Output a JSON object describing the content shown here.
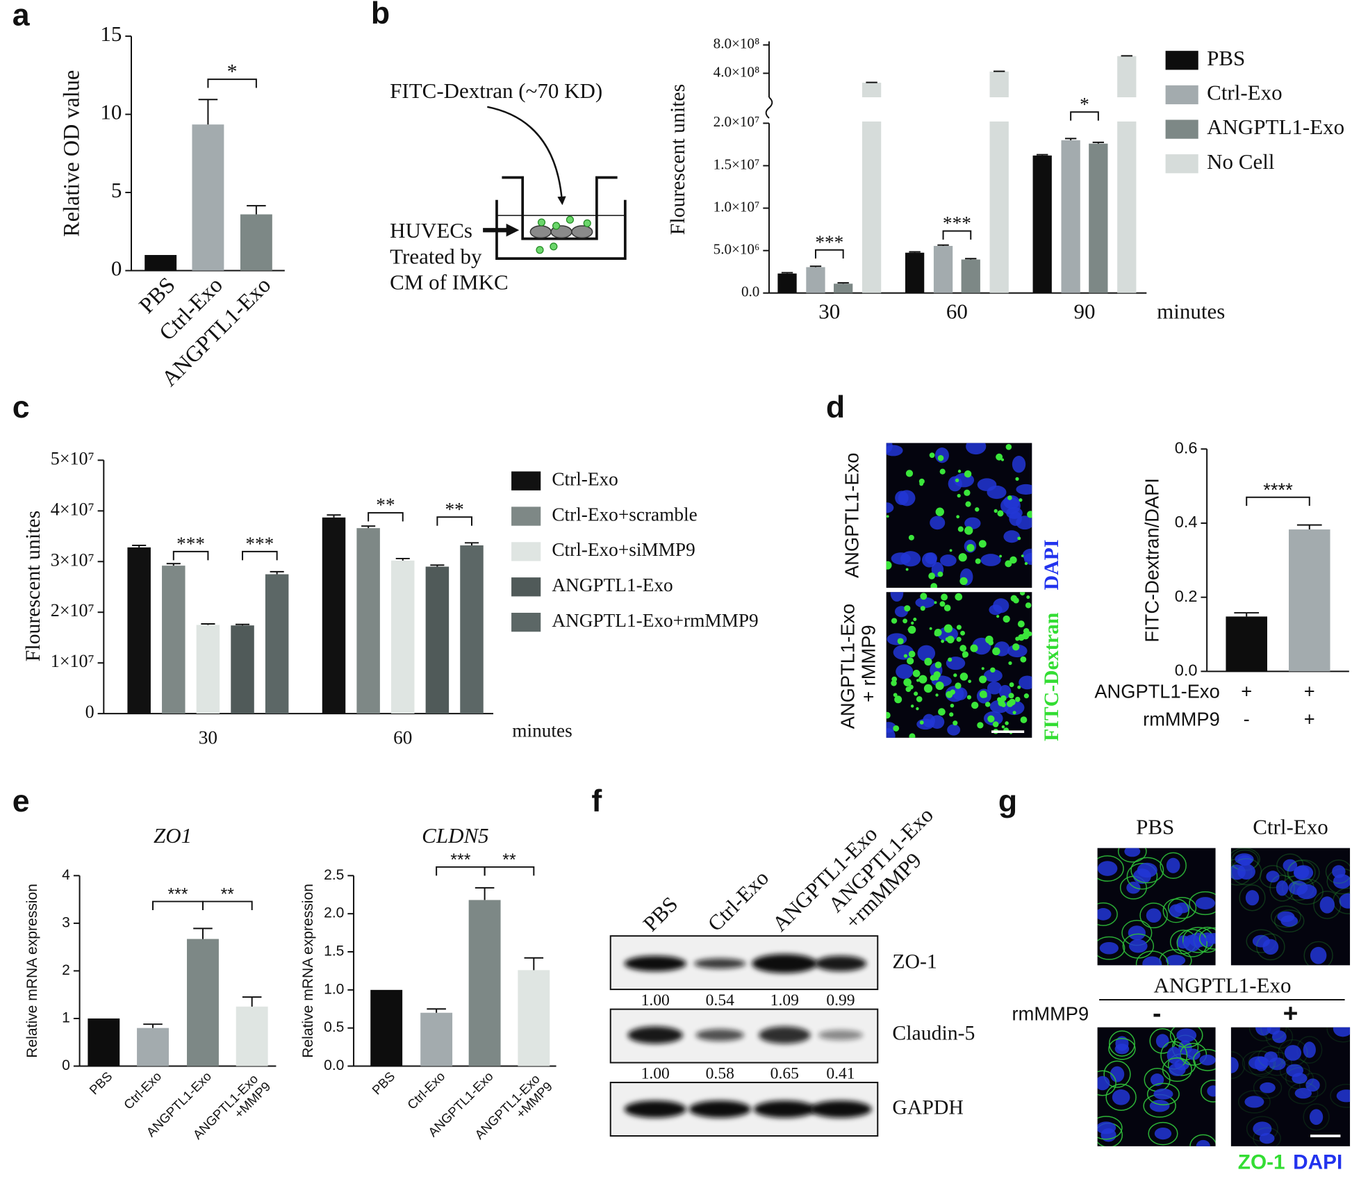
{
  "panels": [
    "a",
    "b",
    "c",
    "d",
    "e",
    "f",
    "g"
  ],
  "chart_data": [
    {
      "type": "bar",
      "ylabel": "Relative OD value",
      "categories": [
        "PBS",
        "Ctrl-Exo",
        "ANGPTL1-Exo"
      ],
      "values": [
        1,
        9.35,
        3.6
      ],
      "errors": [
        null,
        1.6,
        0.55
      ],
      "colors": [
        "#0d0d0d",
        "#a3abae",
        "#7d8886"
      ],
      "ylim": [
        0,
        15
      ],
      "yticks": [
        0,
        5,
        10,
        15
      ],
      "annotations": [
        "*"
      ]
    },
    {
      "type": "grouped_bar",
      "ylabel": "Flourescent unites",
      "xlabel": "minutes",
      "categories": [
        "30",
        "60",
        "90"
      ],
      "series": [
        {
          "name": "PBS",
          "color": "#0d0d0d",
          "values": [
            2300000,
            4750000,
            16200000
          ],
          "errors": [
            100000,
            100000,
            100000
          ]
        },
        {
          "name": "Ctrl-Exo",
          "color": "#a3abae",
          "values": [
            3050000,
            5550000,
            18000000
          ],
          "errors": [
            100000,
            100000,
            200000
          ]
        },
        {
          "name": "ANGPTL1-Exo",
          "color": "#7d8886",
          "values": [
            1100000,
            3950000,
            17600000
          ],
          "errors": [
            100000,
            100000,
            150000
          ]
        },
        {
          "name": "No Cell",
          "color": "#d6dcda",
          "values": [
            267000000,
            424000000,
            642000000
          ],
          "errors": [
            4000000,
            4000000,
            4000000
          ]
        }
      ],
      "ylim": [
        0,
        20000000
      ],
      "yticks": [
        {
          "value": 0,
          "label": "0.0"
        },
        {
          "value": 5000000,
          "label": "5.0×10⁶"
        },
        {
          "value": 10000000,
          "label": "1.0×10⁷"
        },
        {
          "value": 15000000,
          "label": "1.5×10⁷"
        },
        {
          "value": 20000000,
          "label": "2.0×10⁷"
        }
      ],
      "ylim_upper": [
        60000000,
        850000000
      ],
      "yticks_upper": [
        {
          "value": 400000000,
          "label": "4.0×10⁸"
        },
        {
          "value": 800000000,
          "label": "8.0×10⁸"
        }
      ],
      "annotations": [
        "***",
        "***",
        "*"
      ],
      "legend": "right"
    },
    {
      "type": "grouped_bar",
      "ylabel": "Flourescent unites",
      "xlabel": "minutes",
      "categories": [
        "30",
        "60"
      ],
      "series": [
        {
          "name": "Ctrl-Exo",
          "color": "#111111",
          "values": [
            32800000,
            38700000
          ],
          "errors": [
            400000,
            500000
          ]
        },
        {
          "name": "Ctrl-Exo+scramble",
          "color": "#7e8886",
          "values": [
            29200000,
            36600000
          ],
          "errors": [
            400000,
            400000
          ]
        },
        {
          "name": "Ctrl-Exo+siMMP9",
          "color": "#dfe5e2",
          "values": [
            17500000,
            30200000
          ],
          "errors": [
            200000,
            400000
          ]
        },
        {
          "name": "ANGPTL1-Exo",
          "color": "#505a59",
          "values": [
            17400000,
            29000000
          ],
          "errors": [
            200000,
            300000
          ]
        },
        {
          "name": "ANGPTL1-Exo+rmMMP9",
          "color": "#5c6766",
          "values": [
            27500000,
            33200000
          ],
          "errors": [
            500000,
            500000
          ]
        }
      ],
      "ylim": [
        0,
        50000000
      ],
      "yticks": [
        0,
        {
          "value": 10000000,
          "label": "1×10⁷"
        },
        {
          "value": 20000000,
          "label": "2×10⁷"
        },
        {
          "value": 30000000,
          "label": "3×10⁷"
        },
        {
          "value": 40000000,
          "label": "4×10⁷"
        },
        {
          "value": 50000000,
          "label": "5×10⁷"
        }
      ],
      "annotations": [
        "***",
        "***",
        "**",
        "**"
      ],
      "legend": "right"
    },
    {
      "type": "bar",
      "ylabel": "FITC-Dextran/DAPI",
      "values": [
        0.148,
        0.383
      ],
      "errors": [
        0.01,
        0.012
      ],
      "colors": [
        "#0d0d0d",
        "#a3abae"
      ],
      "ylim": [
        0,
        0.6
      ],
      "yticks": [
        {
          "value": 0,
          "label": "0.0"
        },
        0.2,
        0.4,
        0.6
      ],
      "annotations": [
        "****"
      ],
      "conditions": [
        {
          "name": "ANGPTL1-Exo",
          "levels": [
            "+",
            "+"
          ]
        },
        {
          "name": "rmMMP9",
          "levels": [
            "-",
            "+"
          ]
        }
      ]
    },
    {
      "type": "bar",
      "title": "ZO1",
      "ylabel": "Relative mRNA expression",
      "categories": [
        "PBS",
        "Ctrl-Exo",
        "ANGPTL1-Exo",
        "ANGPTL1-Exo +MMP9"
      ],
      "values": [
        1,
        0.8,
        2.67,
        1.25
      ],
      "errors": [
        null,
        0.08,
        0.22,
        0.2
      ],
      "colors": [
        "#0d0d0d",
        "#a3abae",
        "#7d8886",
        "#dfe5e2"
      ],
      "ylim": [
        0,
        4
      ],
      "yticks": [
        0,
        1,
        2,
        3,
        4
      ],
      "annotations": [
        "***",
        "**"
      ]
    },
    {
      "type": "bar",
      "title": "CLDN5",
      "ylabel": "Relative mRNA expression",
      "categories": [
        "PBS",
        "Ctrl-Exo",
        "ANGPTL1-Exo",
        "ANGPTL1-Exo +MMP9"
      ],
      "values": [
        1,
        0.7,
        2.18,
        1.26
      ],
      "errors": [
        null,
        0.05,
        0.16,
        0.16
      ],
      "colors": [
        "#0d0d0d",
        "#a3abae",
        "#7d8886",
        "#dfe5e2"
      ],
      "ylim": [
        0,
        2.5
      ],
      "yticks": [
        {
          "value": 0,
          "label": "0.0"
        },
        0.5,
        {
          "value": 1,
          "label": "1.0"
        },
        1.5,
        {
          "value": 2,
          "label": "2.0"
        },
        2.5
      ],
      "annotations": [
        "***",
        "**"
      ]
    }
  ],
  "schematic": {
    "reagent": "FITC-Dextran (~70 KD)",
    "cells": [
      "HUVECs",
      "Treated by",
      "CM of IMKC"
    ]
  },
  "micrographs_d": {
    "rows": [
      "ANGPTL1-Exo",
      "ANGPTL1-Exo + rMMP9"
    ],
    "stains": [
      "FITC-Dextran",
      "DAPI"
    ]
  },
  "blot": {
    "lanes": [
      "PBS",
      "Ctrl-Exo",
      "ANGPTL1-Exo",
      "ANGPTL1-Exo +rmMMP9"
    ],
    "bands": [
      {
        "name": "ZO-1",
        "values": [
          "1.00",
          "0.54",
          "1.09",
          "0.99"
        ]
      },
      {
        "name": "Claudin-5",
        "values": [
          "1.00",
          "0.58",
          "0.65",
          "0.41"
        ]
      },
      {
        "name": "GAPDH"
      }
    ]
  },
  "micrographs_g": {
    "columns": [
      "PBS",
      "Ctrl-Exo"
    ],
    "group": "ANGPTL1-Exo",
    "factor": "rmMMP9",
    "levels": [
      "-",
      "+"
    ],
    "stains": [
      "ZO-1",
      "DAPI"
    ]
  }
}
